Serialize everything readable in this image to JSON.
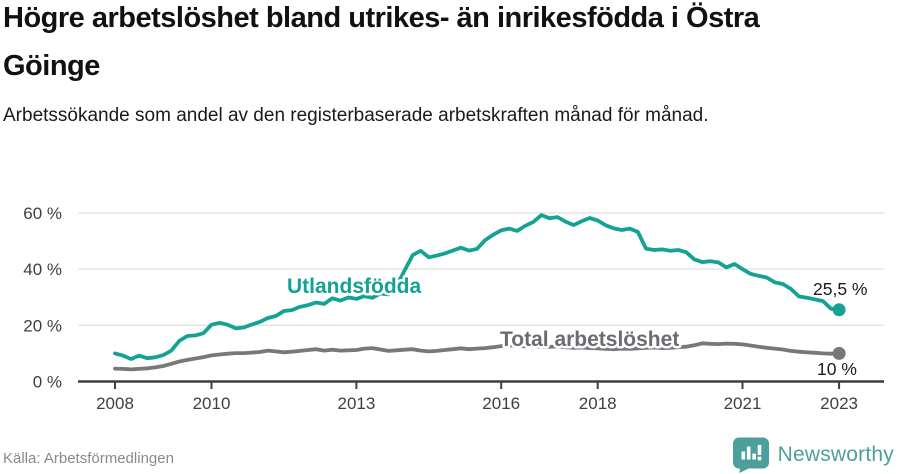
{
  "header": {
    "title": "Högre arbetslöshet bland utrikes- än inrikesfödda i Östra Göinge",
    "subtitle": "Arbetssökande som andel av den registerbaserade arbetskraften månad för månad."
  },
  "chart_data": {
    "type": "line",
    "x_unit": "year (monthly series, one value every 2 months)",
    "x_start_year": 2008,
    "x_step_months": 2,
    "x_end_year": 2023,
    "x_ticks": [
      2008,
      2010,
      2013,
      2016,
      2018,
      2021,
      2023
    ],
    "y_ticks": [
      0,
      20,
      40,
      60
    ],
    "y_tick_suffix": " %",
    "ylim": [
      0,
      63
    ],
    "grid": "horizontal",
    "legend": "inline-labels",
    "series": [
      {
        "name": "Utlandsfödda",
        "color": "#14a294",
        "label_color": "#14a294",
        "end_label": "25,5 %",
        "end_value": 25.5,
        "values": [
          10.0,
          9.2,
          8.0,
          9.2,
          8.3,
          8.6,
          9.4,
          11.0,
          14.5,
          16.2,
          16.4,
          17.2,
          20.2,
          20.9,
          20.2,
          18.9,
          19.2,
          20.3,
          21.2,
          22.6,
          23.3,
          25.1,
          25.4,
          26.6,
          27.2,
          28.1,
          27.6,
          29.6,
          28.8,
          29.9,
          29.4,
          30.4,
          29.8,
          31.3,
          31.0,
          34.0,
          39.5,
          45.0,
          46.5,
          44.2,
          44.8,
          45.6,
          46.6,
          47.6,
          46.6,
          47.2,
          50.3,
          52.2,
          53.8,
          54.4,
          53.6,
          55.4,
          56.8,
          59.2,
          58.1,
          58.5,
          56.9,
          55.7,
          57.0,
          58.2,
          57.3,
          55.6,
          54.5,
          53.9,
          54.4,
          53.2,
          47.3,
          46.8,
          47.0,
          46.5,
          46.8,
          46.0,
          43.5,
          42.5,
          42.8,
          42.4,
          40.6,
          41.8,
          40.0,
          38.3,
          37.6,
          37.0,
          35.3,
          34.7,
          33.0,
          30.3,
          29.8,
          29.2,
          28.6,
          25.9,
          25.5
        ]
      },
      {
        "name": "Total arbetslöshet",
        "color": "#787878",
        "label_color": "#6b6b72",
        "end_label": "10 %",
        "end_value": 10,
        "values": [
          4.6,
          4.5,
          4.3,
          4.5,
          4.7,
          5.0,
          5.5,
          6.3,
          7.1,
          7.7,
          8.2,
          8.7,
          9.3,
          9.6,
          9.9,
          10.1,
          10.1,
          10.3,
          10.5,
          11.0,
          10.7,
          10.4,
          10.6,
          10.9,
          11.2,
          11.5,
          11.0,
          11.3,
          11.0,
          11.1,
          11.2,
          11.7,
          11.9,
          11.4,
          10.9,
          11.1,
          11.3,
          11.5,
          11.0,
          10.7,
          10.9,
          11.2,
          11.5,
          11.8,
          11.5,
          11.7,
          11.9,
          12.2,
          12.6,
          12.9,
          12.7,
          12.5,
          12.6,
          12.4,
          12.3,
          12.5,
          12.2,
          12.0,
          12.1,
          11.9,
          11.8,
          11.6,
          11.5,
          11.7,
          11.6,
          11.8,
          12.0,
          12.1,
          11.9,
          12.0,
          12.2,
          12.4,
          12.9,
          13.6,
          13.4,
          13.3,
          13.5,
          13.4,
          13.2,
          12.8,
          12.4,
          12.0,
          11.7,
          11.4,
          10.9,
          10.6,
          10.4,
          10.2,
          10.0,
          9.9,
          10.0
        ]
      }
    ]
  },
  "footer": {
    "source": "Källa: Arbetsförmedlingen",
    "brand": "Newsworthy"
  },
  "icons": {
    "brand_logo": "newsworthy-speech-bubble-bar-chart"
  },
  "colors": {
    "accent_teal": "#14a294",
    "line_gray": "#787878",
    "brand_teal": "#4ba09b",
    "axis": "#3f3f3f",
    "gridline": "#e2e2e2",
    "tick_text": "#3f3f3f",
    "value_label_text": "#1a1a1a",
    "title_text": "#111111",
    "muted_text": "#8a8a8a"
  }
}
